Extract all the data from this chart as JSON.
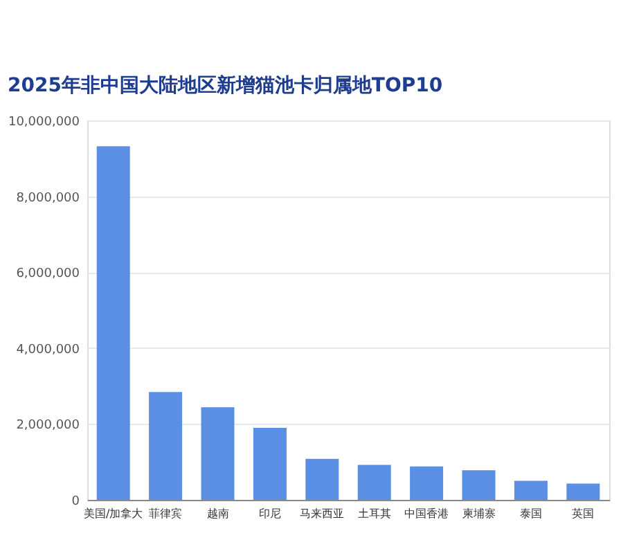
{
  "chart_data": {
    "type": "bar",
    "title": "2025年非中国大陆地区新增猫池卡归属地TOP10",
    "categories": [
      "美国/加拿大",
      "菲律宾",
      "越南",
      "印尼",
      "马来西亚",
      "土耳其",
      "中国香港",
      "柬埔寨",
      "泰国",
      "英国"
    ],
    "values": [
      9320000,
      2840000,
      2440000,
      1900000,
      1080000,
      920000,
      880000,
      780000,
      500000,
      430000
    ],
    "color": "#5b8fe3",
    "ylim": [
      0,
      10000000
    ],
    "yticks": [
      {
        "value": 0,
        "label": "0"
      },
      {
        "value": 2000000,
        "label": "2,000,000"
      },
      {
        "value": 4000000,
        "label": "4,000,000"
      },
      {
        "value": 6000000,
        "label": "6,000,000"
      },
      {
        "value": 8000000,
        "label": "8,000,000"
      },
      {
        "value": 10000000,
        "label": "10,000,000"
      }
    ],
    "grid": "y"
  }
}
